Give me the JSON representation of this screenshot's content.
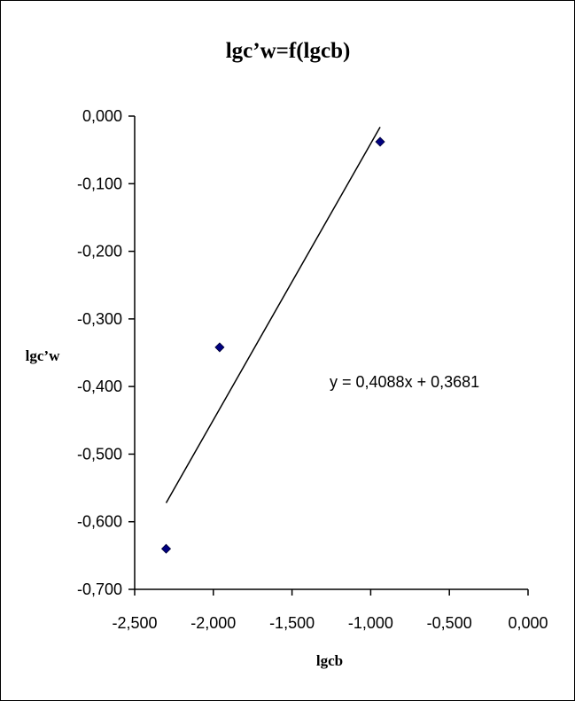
{
  "chart_data": {
    "type": "scatter",
    "title": "lgc’w=f(lgcb)",
    "xlabel": "lgcb",
    "ylabel": "lgc’w",
    "xlim": [
      -2.5,
      0.0
    ],
    "ylim": [
      -0.7,
      0.0
    ],
    "x_ticks": [
      "-2,500",
      "-2,000",
      "-1,500",
      "-1,000",
      "-0,500",
      "0,000"
    ],
    "x_tick_values": [
      -2.5,
      -2.0,
      -1.5,
      -1.0,
      -0.5,
      0.0
    ],
    "y_ticks": [
      "0,000",
      "-0,100",
      "-0,200",
      "-0,300",
      "-0,400",
      "-0,500",
      "-0,600",
      "-0,700"
    ],
    "y_tick_values": [
      0.0,
      -0.1,
      -0.2,
      -0.3,
      -0.4,
      -0.5,
      -0.6,
      -0.7
    ],
    "points": [
      {
        "x": -2.3,
        "y": -0.64
      },
      {
        "x": -1.96,
        "y": -0.342
      },
      {
        "x": -0.94,
        "y": -0.038
      }
    ],
    "trendline": {
      "slope": 0.4088,
      "intercept": 0.3681,
      "x_range": [
        -2.3,
        -0.94
      ],
      "equation_text": "y = 0,4088x + 0,3681"
    },
    "marker_color": "#000080",
    "grid": false,
    "legend": "none"
  }
}
